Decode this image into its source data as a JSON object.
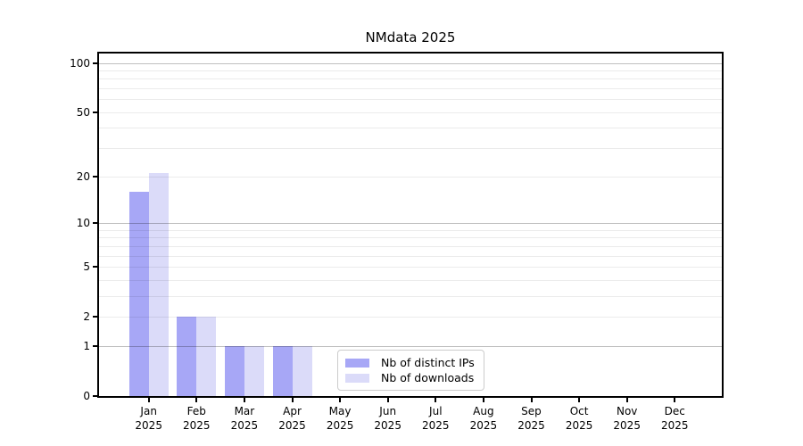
{
  "chart_data": {
    "type": "bar",
    "title": "NMdata 2025",
    "categories": [
      "Jan",
      "Feb",
      "Mar",
      "Apr",
      "May",
      "Jun",
      "Jul",
      "Aug",
      "Sep",
      "Oct",
      "Nov",
      "Dec"
    ],
    "category_year_line": "2025",
    "series": [
      {
        "name": "Nb of distinct IPs",
        "color": "#a7a7f6",
        "values": [
          16,
          2,
          1,
          1,
          0,
          0,
          0,
          0,
          0,
          0,
          0,
          0
        ]
      },
      {
        "name": "Nb of downloads",
        "color": "#dbdbf9",
        "values": [
          21,
          2,
          1,
          1,
          0,
          0,
          0,
          0,
          0,
          0,
          0,
          0
        ]
      }
    ],
    "y_axis": {
      "scale": "log10(1+y)",
      "tick_labels": [
        0,
        1,
        2,
        5,
        10,
        20,
        50,
        100
      ],
      "major_gridlines": [
        1,
        10,
        100
      ],
      "minor_gridlines": [
        2,
        3,
        4,
        5,
        6,
        7,
        8,
        9,
        20,
        30,
        40,
        50,
        60,
        70,
        80,
        90
      ],
      "top_value": 114
    },
    "xlabel": "",
    "ylabel": "",
    "grid": true,
    "legend_position": "inside lower-center-left"
  },
  "colors": {
    "spine": "#000000",
    "minor_grid": "rgba(0,0,0,0.08)",
    "major_grid": "rgba(0,0,0,0.25)",
    "legend_border": "#cccccc",
    "text": "#000000"
  }
}
